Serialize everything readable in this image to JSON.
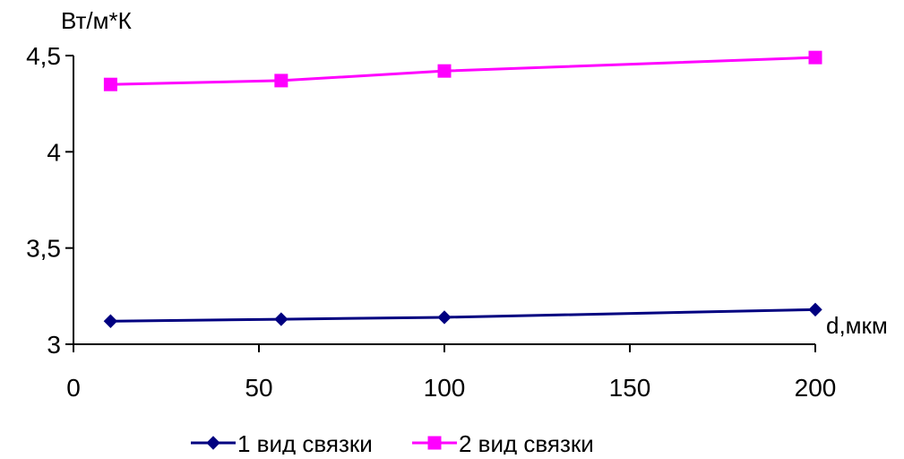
{
  "chart_data": {
    "type": "line",
    "title": "",
    "ylabel": "Вт/м*К",
    "xlabel": "d,мкм",
    "xlim": [
      0,
      200
    ],
    "ylim": [
      3,
      4.5
    ],
    "xticks": [
      {
        "value": 0,
        "label": "0"
      },
      {
        "value": 50,
        "label": "50"
      },
      {
        "value": 100,
        "label": "100"
      },
      {
        "value": 150,
        "label": "150"
      },
      {
        "value": 200,
        "label": "200"
      }
    ],
    "yticks": [
      {
        "value": 3,
        "label": "3"
      },
      {
        "value": 3.5,
        "label": "3,5"
      },
      {
        "value": 4,
        "label": "4"
      },
      {
        "value": 4.5,
        "label": "4,5"
      }
    ],
    "grid": false,
    "legend_position": "bottom",
    "series": [
      {
        "name": "1 вид связки",
        "color": "#000080",
        "marker": "diamond",
        "x": [
          10,
          56,
          100,
          200
        ],
        "y": [
          3.12,
          3.13,
          3.14,
          3.18
        ]
      },
      {
        "name": "2 вид связки",
        "color": "#FF00FF",
        "marker": "square",
        "x": [
          10,
          56,
          100,
          200
        ],
        "y": [
          4.35,
          4.37,
          4.42,
          4.49
        ]
      }
    ]
  }
}
